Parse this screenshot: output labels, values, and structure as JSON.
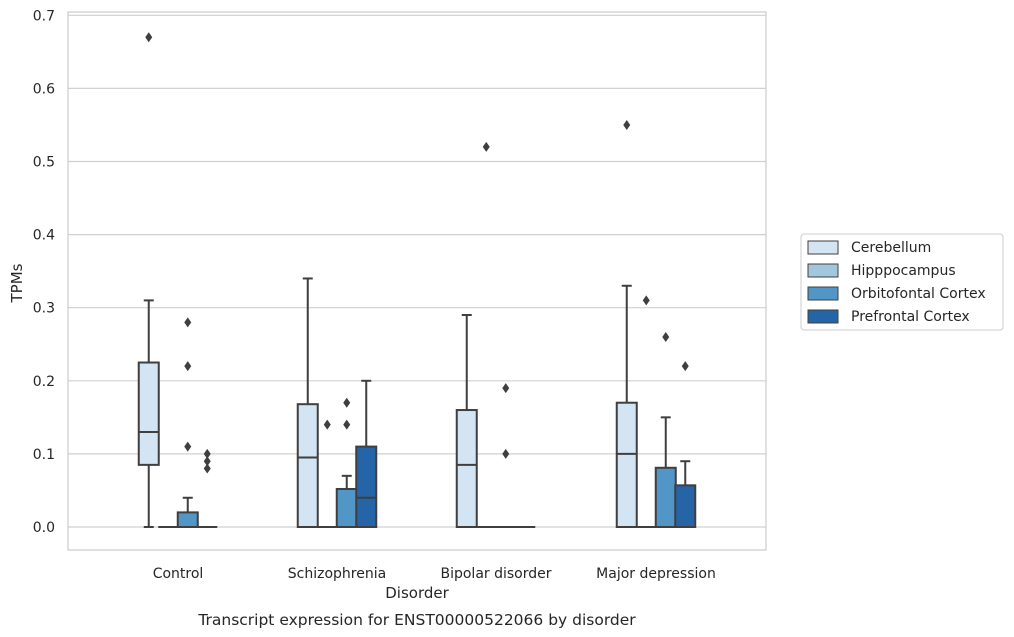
{
  "chart_data": {
    "type": "box",
    "xlabel": "Disorder",
    "ylabel": "TPMs",
    "caption": "Transcript expression for ENST00000522066 by disorder",
    "ylim": [
      -0.032,
      0.705
    ],
    "yticks": [
      "0.0",
      "0.1",
      "0.2",
      "0.3",
      "0.4",
      "0.5",
      "0.6",
      "0.7"
    ],
    "grid": "horizontal",
    "legend_position": "right",
    "categories": [
      "Control",
      "Schizophrenia",
      "Bipolar disorder",
      "Major depression"
    ],
    "series": [
      {
        "name": "Cerebellum",
        "color": "#d3e4f3",
        "boxes": [
          {
            "min": 0.0,
            "q1": 0.085,
            "median": 0.13,
            "q3": 0.225,
            "max": 0.31,
            "outliers": [
              0.67
            ]
          },
          {
            "min": 0.0,
            "q1": 0.0,
            "median": 0.095,
            "q3": 0.168,
            "max": 0.34,
            "outliers": []
          },
          {
            "min": 0.0,
            "q1": 0.0,
            "median": 0.085,
            "q3": 0.16,
            "max": 0.29,
            "outliers": []
          },
          {
            "min": 0.0,
            "q1": 0.0,
            "median": 0.1,
            "q3": 0.17,
            "max": 0.33,
            "outliers": [
              0.55
            ]
          }
        ]
      },
      {
        "name": "Hipppocampus",
        "color": "#a0c7de",
        "boxes": [
          {
            "min": 0.0,
            "q1": 0.0,
            "median": 0.0,
            "q3": 0.0,
            "max": 0.0,
            "outliers": []
          },
          {
            "min": 0.0,
            "q1": 0.0,
            "median": 0.0,
            "q3": 0.0,
            "max": 0.0,
            "outliers": [
              0.14
            ]
          },
          {
            "min": 0.0,
            "q1": 0.0,
            "median": 0.0,
            "q3": 0.0,
            "max": 0.0,
            "outliers": [
              0.52
            ]
          },
          {
            "min": 0.0,
            "q1": 0.0,
            "median": 0.0,
            "q3": 0.0,
            "max": 0.0,
            "outliers": [
              0.31
            ]
          }
        ]
      },
      {
        "name": "Orbitofontal Cortex",
        "color": "#5196c6",
        "boxes": [
          {
            "min": 0.0,
            "q1": 0.0,
            "median": 0.0,
            "q3": 0.02,
            "max": 0.04,
            "outliers": [
              0.28,
              0.22,
              0.11
            ]
          },
          {
            "min": 0.0,
            "q1": 0.0,
            "median": 0.0,
            "q3": 0.052,
            "max": 0.07,
            "outliers": [
              0.17,
              0.14
            ]
          },
          {
            "min": 0.0,
            "q1": 0.0,
            "median": 0.0,
            "q3": 0.0,
            "max": 0.0,
            "outliers": [
              0.19,
              0.1
            ]
          },
          {
            "min": 0.0,
            "q1": 0.0,
            "median": 0.0,
            "q3": 0.081,
            "max": 0.15,
            "outliers": [
              0.26
            ]
          }
        ]
      },
      {
        "name": "Prefrontal Cortex",
        "color": "#2564a6",
        "boxes": [
          {
            "min": 0.0,
            "q1": 0.0,
            "median": 0.0,
            "q3": 0.0,
            "max": 0.0,
            "outliers": [
              0.1,
              0.09,
              0.08
            ]
          },
          {
            "min": 0.0,
            "q1": 0.0,
            "median": 0.04,
            "q3": 0.11,
            "max": 0.2,
            "outliers": []
          },
          {
            "min": 0.0,
            "q1": 0.0,
            "median": 0.0,
            "q3": 0.0,
            "max": 0.0,
            "outliers": []
          },
          {
            "min": 0.0,
            "q1": 0.0,
            "median": 0.0,
            "q3": 0.057,
            "max": 0.09,
            "outliers": [
              0.22
            ]
          }
        ]
      }
    ]
  }
}
